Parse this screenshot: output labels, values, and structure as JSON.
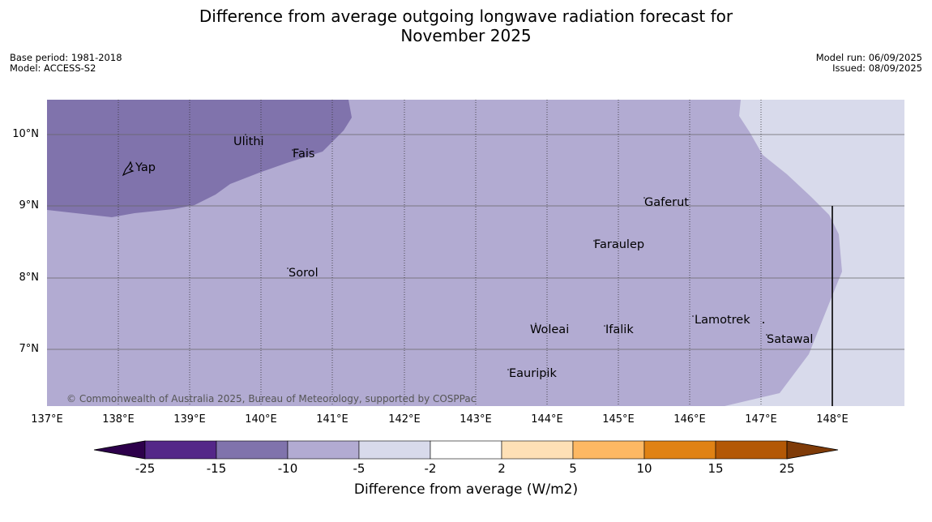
{
  "title": {
    "line1": "Difference from average outgoing longwave radiation forecast for",
    "line2": "November 2025"
  },
  "meta_left": {
    "base_period": "Base period: 1981-2018",
    "model": "Model: ACCESS-S2"
  },
  "meta_right": {
    "model_run": "Model run: 06/09/2025",
    "issued": "Issued: 08/09/2025"
  },
  "map": {
    "lat_labels": [
      "10°N",
      "9°N",
      "8°N",
      "7°N"
    ],
    "lon_labels": [
      "137°E",
      "138°E",
      "139°E",
      "140°E",
      "141°E",
      "142°E",
      "143°E",
      "144°E",
      "145°E",
      "146°E",
      "147°E",
      "148°E"
    ],
    "places": [
      "Ulithi",
      "Yap",
      "Fais",
      "Gaferut",
      "Faraulep",
      "Sorol",
      "Woleai",
      "Ifalik",
      "Lamotrek",
      "Satawal",
      "Eauripik"
    ],
    "copyright": "© Commonwealth of Australia 2025, Bureau of Meteorology, supported by COSPPac",
    "colors": {
      "band_-15_-10": "#8073ac",
      "band_-10_-5": "#b2abd2",
      "band_-5_-2": "#d8daeb",
      "grid": "#444444"
    }
  },
  "colorbar": {
    "label": "Difference from average (W/m2)",
    "ticks": [
      "-25",
      "-15",
      "-10",
      "-5",
      "-2",
      "2",
      "5",
      "10",
      "15",
      "25"
    ],
    "colors": [
      "#2d004b",
      "#542788",
      "#8073ac",
      "#b2abd2",
      "#d8daeb",
      "#ffffff",
      "#fee0b6",
      "#fdb863",
      "#e08214",
      "#b35806",
      "#7f3b08"
    ]
  }
}
